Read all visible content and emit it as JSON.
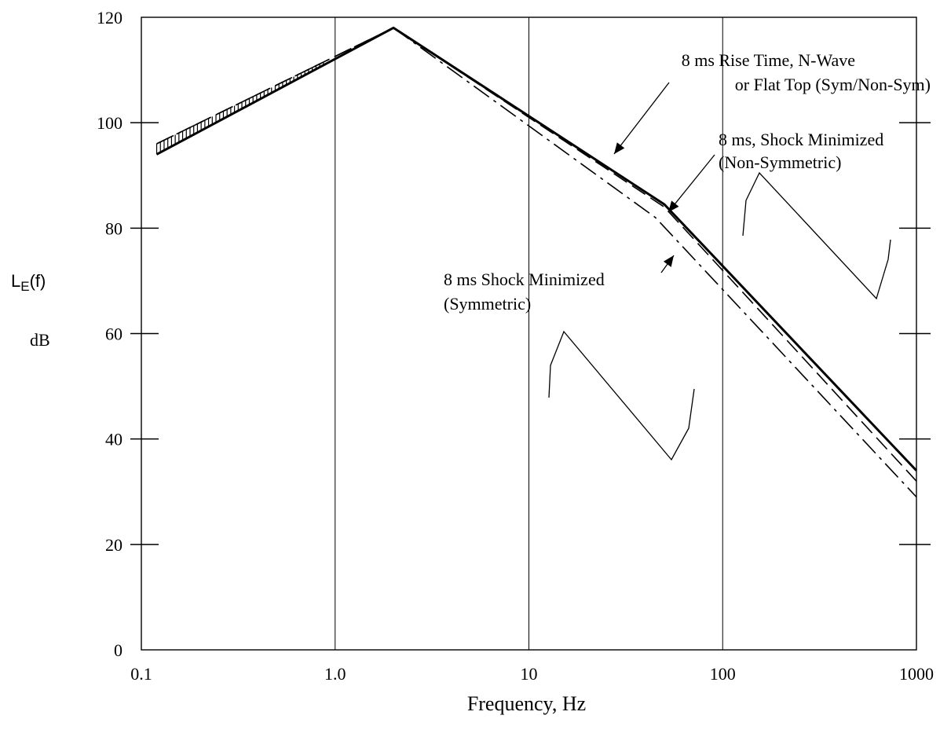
{
  "chart_data": {
    "type": "line",
    "title": "",
    "xlabel": "Frequency, Hz",
    "ylabel_main": "L",
    "ylabel_sub": "E",
    "ylabel_arg": "(f)",
    "ylabel_unit": "dB",
    "x_scale": "log",
    "xlim": [
      0.1,
      1000
    ],
    "ylim": [
      0,
      120
    ],
    "x_ticks": [
      {
        "value": 0.1,
        "label": "0.1"
      },
      {
        "value": 1,
        "label": "1.0"
      },
      {
        "value": 10,
        "label": "10"
      },
      {
        "value": 100,
        "label": "100"
      },
      {
        "value": 1000,
        "label": "1000"
      }
    ],
    "y_ticks": [
      {
        "value": 0,
        "label": "0"
      },
      {
        "value": 20,
        "label": "20"
      },
      {
        "value": 40,
        "label": "40"
      },
      {
        "value": 60,
        "label": "60"
      },
      {
        "value": 80,
        "label": "80"
      },
      {
        "value": 100,
        "label": "100"
      },
      {
        "value": 120,
        "label": "120"
      }
    ],
    "grid": "vertical at decades",
    "series": [
      {
        "style": "solid",
        "width": 3,
        "x": [
          0.12,
          2.0,
          50,
          1000
        ],
        "y": [
          94,
          118,
          84.5,
          34
        ]
      },
      {
        "style": "dashed",
        "width": 1.6,
        "x": [
          0.12,
          2.0,
          50,
          1000
        ],
        "y": [
          96,
          118,
          84,
          32
        ]
      },
      {
        "style": "dashdot",
        "width": 1.6,
        "x": [
          0.12,
          2.0,
          45,
          1000
        ],
        "y": [
          96,
          118,
          82,
          29
        ]
      }
    ],
    "annotations": [
      {
        "lines": [
          "8 ms Rise Time, N-Wave",
          "or Flat Top (Sym/Non-Sym)"
        ]
      },
      {
        "lines": [
          "8 ms, Shock Minimized",
          "(Non-Symmetric)"
        ]
      },
      {
        "lines": [
          "8 ms Shock Minimized",
          "(Symmetric)"
        ]
      }
    ]
  }
}
